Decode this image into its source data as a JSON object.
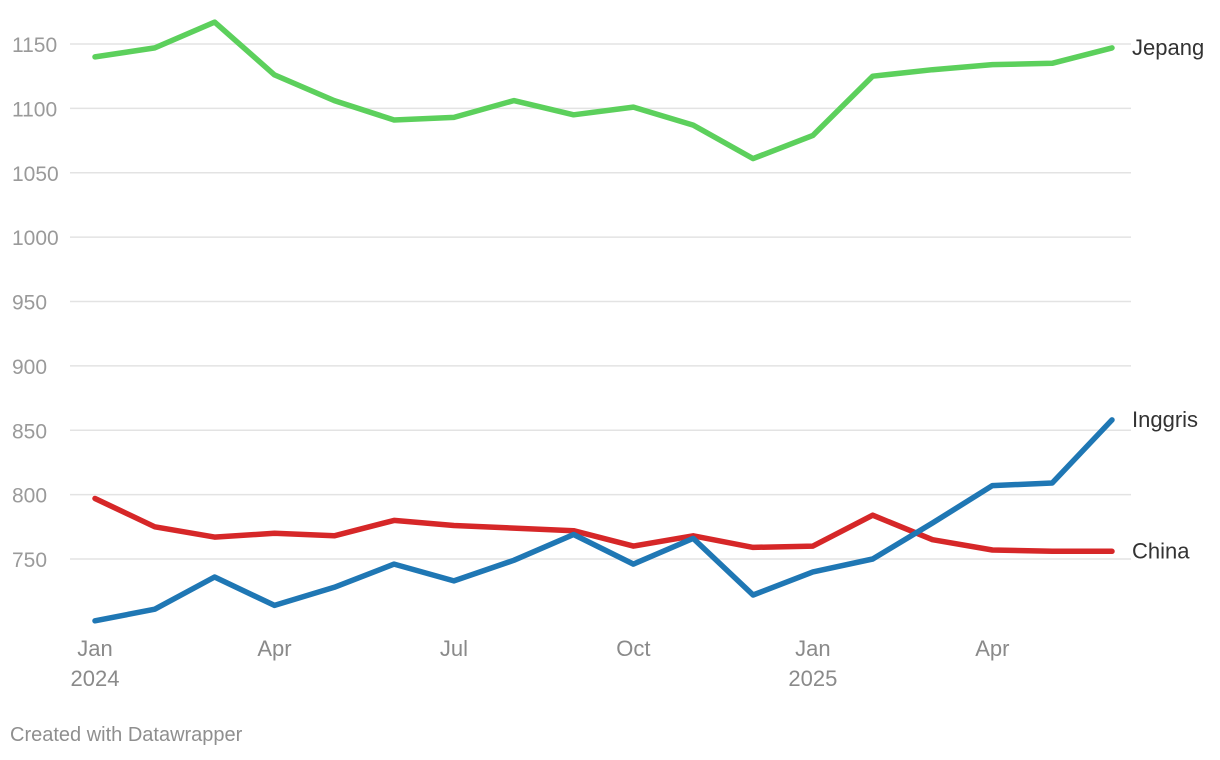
{
  "chart_data": {
    "type": "line",
    "x": [
      "2024-01",
      "2024-02",
      "2024-03",
      "2024-04",
      "2024-05",
      "2024-06",
      "2024-07",
      "2024-08",
      "2024-09",
      "2024-10",
      "2024-11",
      "2024-12",
      "2025-01",
      "2025-02",
      "2025-03",
      "2025-04",
      "2025-05",
      "2025-06"
    ],
    "series": [
      {
        "name": "Jepang",
        "color": "#5cd05c",
        "values": [
          1140,
          1147,
          1167,
          1126,
          1106,
          1091,
          1093,
          1106,
          1095,
          1101,
          1087,
          1061,
          1079,
          1125,
          1130,
          1134,
          1135,
          1147
        ]
      },
      {
        "name": "Inggris",
        "color": "#1f77b4",
        "values": [
          702,
          711,
          736,
          714,
          728,
          746,
          733,
          749,
          769,
          746,
          766,
          722,
          740,
          750,
          778,
          807,
          809,
          858
        ]
      },
      {
        "name": "China",
        "color": "#d62728",
        "values": [
          797,
          775,
          767,
          770,
          768,
          780,
          776,
          774,
          772,
          760,
          768,
          759,
          760,
          784,
          765,
          757,
          756,
          756
        ]
      }
    ],
    "yticks": [
      "750",
      "800",
      "850",
      "900",
      "950",
      "1000",
      "1050",
      "1100",
      "1150"
    ],
    "ylim": [
      700,
      1170
    ],
    "xticks": [
      {
        "x": "2024-01",
        "label": "Jan",
        "sublabel": "2024"
      },
      {
        "x": "2024-04",
        "label": "Apr",
        "sublabel": ""
      },
      {
        "x": "2024-07",
        "label": "Jul",
        "sublabel": ""
      },
      {
        "x": "2024-10",
        "label": "Oct",
        "sublabel": ""
      },
      {
        "x": "2025-01",
        "label": "Jan",
        "sublabel": "2025"
      },
      {
        "x": "2025-04",
        "label": "Apr",
        "sublabel": ""
      }
    ],
    "grid": true,
    "legend": "direct labels at line ends"
  },
  "credit": "Created with Datawrapper"
}
